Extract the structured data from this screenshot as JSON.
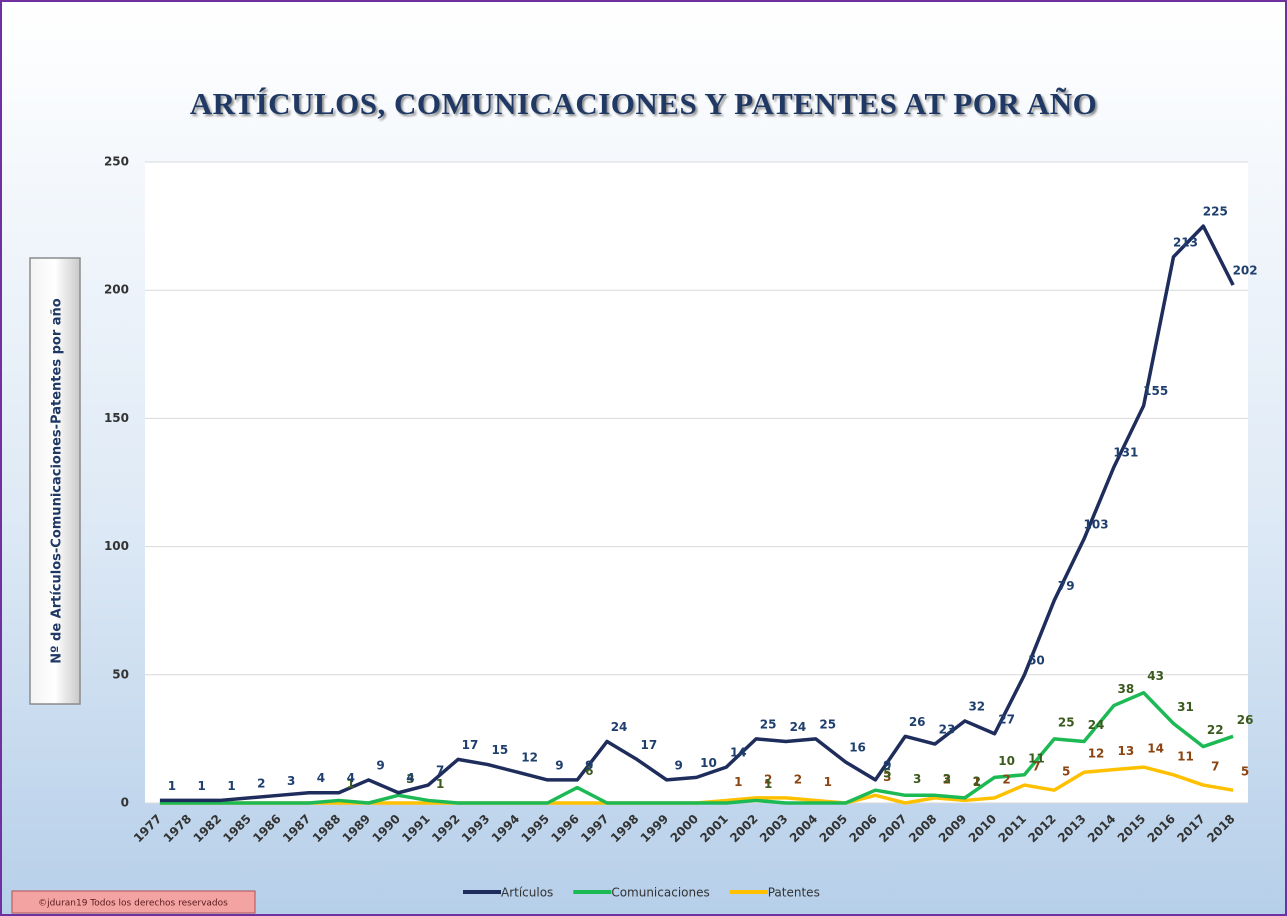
{
  "footer": "©jduran19 Todos los derechos reservados",
  "chart_data": {
    "type": "line",
    "title": "ARTÍCULOS, COMUNICACIONES Y PATENTES AT POR AÑO",
    "y_label": "Nº de Artículos-Comunicaciones-Patentes por año",
    "categories": [
      "1977",
      "1978",
      "1982",
      "1985",
      "1986",
      "1987",
      "1988",
      "1989",
      "1990",
      "1991",
      "1992",
      "1993",
      "1994",
      "1995",
      "1996",
      "1997",
      "1998",
      "1999",
      "2000",
      "2001",
      "2002",
      "2003",
      "2004",
      "2005",
      "2006",
      "2007",
      "2008",
      "2009",
      "2010",
      "2011",
      "2012",
      "2013",
      "2014",
      "2015",
      "2016",
      "2017",
      "2018"
    ],
    "series": [
      {
        "name": "Artículos",
        "color": "#1f2d5c",
        "label_color": "#1f3f6e",
        "values": [
          1,
          1,
          1,
          2,
          3,
          4,
          4,
          9,
          4,
          7,
          17,
          15,
          12,
          9,
          9,
          24,
          17,
          9,
          10,
          14,
          25,
          24,
          25,
          16,
          9,
          26,
          23,
          32,
          27,
          50,
          79,
          103,
          131,
          155,
          213,
          225,
          202
        ]
      },
      {
        "name": "Comunicaciones",
        "color": "#1db954",
        "label_color": "#3b5a1e",
        "values": [
          0,
          0,
          0,
          0,
          0,
          0,
          1,
          0,
          3,
          1,
          0,
          0,
          0,
          0,
          6,
          0,
          0,
          0,
          0,
          0,
          1,
          0,
          0,
          0,
          5,
          3,
          3,
          2,
          10,
          11,
          25,
          24,
          38,
          43,
          31,
          22,
          26
        ]
      },
      {
        "name": "Patentes",
        "color": "#ffc000",
        "label_color": "#8a4512",
        "values": [
          0,
          0,
          0,
          0,
          0,
          0,
          0,
          0,
          0,
          0,
          0,
          0,
          0,
          0,
          0,
          0,
          0,
          0,
          0,
          1,
          2,
          2,
          1,
          0,
          3,
          0,
          2,
          1,
          2,
          7,
          5,
          12,
          13,
          14,
          11,
          7,
          5
        ]
      }
    ],
    "ylim": [
      0,
      250
    ],
    "yticks": [
      0,
      50,
      100,
      150,
      200,
      250
    ],
    "grid": true,
    "legend": "bottom"
  }
}
